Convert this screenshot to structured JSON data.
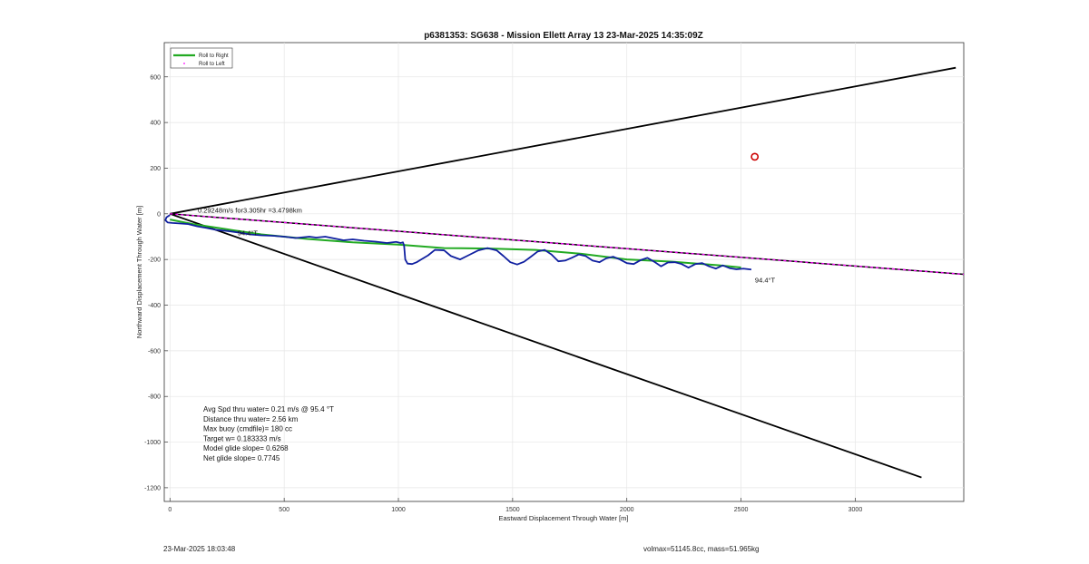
{
  "chart_data": {
    "type": "line",
    "title": "p6381353: SG638 - Mission Ellett Array 13 23-Mar-2025 14:35:09Z",
    "xlabel": "Eastward Displacement Through Water [m]",
    "ylabel": "Northward Displacement Through Water [m]",
    "xlim": [
      -25,
      3475
    ],
    "ylim": [
      -1260,
      750
    ],
    "xticks": [
      0,
      500,
      1000,
      1500,
      2000,
      2500,
      3000
    ],
    "yticks": [
      -1200,
      -1000,
      -800,
      -600,
      -400,
      -200,
      0,
      200,
      400,
      600
    ],
    "grid": true,
    "legend_position": "top-left",
    "legend": [
      {
        "label": "Roll to Right",
        "color": "#22aa22",
        "style": "solid"
      },
      {
        "label": "Roll to Left",
        "color": "#ff00ff",
        "style": "dot"
      }
    ],
    "series": [
      {
        "role": "cone-upper",
        "color": "#000000",
        "x": [
          0,
          3440
        ],
        "y": [
          0,
          640
        ]
      },
      {
        "role": "cone-lower",
        "color": "#000000",
        "x": [
          0,
          3290
        ],
        "y": [
          0,
          -1155
        ]
      },
      {
        "role": "heading-line",
        "color": "#000000",
        "color2": "#ff00ff",
        "x": [
          0,
          3475
        ],
        "y": [
          0,
          -265
        ]
      },
      {
        "name": "Roll to Right",
        "color": "#22aa22",
        "x": [
          0,
          100,
          250,
          400,
          600,
          800,
          1000,
          1200,
          1400,
          1600,
          1800,
          2000,
          2200,
          2400,
          2500
        ],
        "y": [
          -25,
          -45,
          -68,
          -90,
          -110,
          -125,
          -135,
          -150,
          -152,
          -158,
          -175,
          -200,
          -210,
          -225,
          -235
        ]
      },
      {
        "name": "track",
        "color": "#1020a0",
        "x": [
          0,
          -15,
          -20,
          -10,
          10,
          40,
          80,
          120,
          160,
          200,
          250,
          300,
          350,
          400,
          450,
          500,
          550,
          580,
          610,
          640,
          680,
          720,
          760,
          800,
          850,
          900,
          950,
          990,
          1010,
          1020,
          1025,
          1030,
          1040,
          1060,
          1080,
          1100,
          1130,
          1160,
          1200,
          1230,
          1270,
          1310,
          1350,
          1390,
          1430,
          1460,
          1490,
          1520,
          1550,
          1580,
          1610,
          1640,
          1670,
          1700,
          1730,
          1760,
          1790,
          1820,
          1850,
          1880,
          1910,
          1940,
          1970,
          2000,
          2030,
          2060,
          2090,
          2120,
          2150,
          2180,
          2210,
          2240,
          2270,
          2300,
          2330,
          2360,
          2390,
          2420,
          2450,
          2480,
          2510,
          2545
        ],
        "y": [
          -5,
          -15,
          -28,
          -38,
          -40,
          -42,
          -45,
          -55,
          -62,
          -70,
          -75,
          -82,
          -90,
          -94,
          -96,
          -100,
          -106,
          -103,
          -100,
          -104,
          -100,
          -108,
          -116,
          -112,
          -118,
          -122,
          -128,
          -123,
          -128,
          -125,
          -140,
          -200,
          -218,
          -220,
          -212,
          -200,
          -182,
          -158,
          -160,
          -185,
          -200,
          -180,
          -160,
          -150,
          -160,
          -185,
          -212,
          -222,
          -210,
          -188,
          -165,
          -158,
          -178,
          -208,
          -205,
          -192,
          -178,
          -185,
          -205,
          -212,
          -195,
          -188,
          -200,
          -216,
          -220,
          -203,
          -193,
          -210,
          -230,
          -213,
          -212,
          -220,
          -236,
          -220,
          -216,
          -230,
          -240,
          -226,
          -238,
          -243,
          -240,
          -244
        ]
      }
    ],
    "marker": {
      "x": 2560,
      "y": 250,
      "color": "#cc0000"
    },
    "annotations": [
      {
        "text": "0.29248m/s for3.305hr =3.4798km",
        "x": 350,
        "y": 5
      },
      {
        "text": "94.4°T",
        "x": 340,
        "y": -95
      },
      {
        "text": "94.4°T",
        "x": 2605,
        "y": -300
      }
    ],
    "stats_lines": [
      "Avg Spd thru water=  0.21 m/s @  95.4 °T",
      "Distance thru water=  2.56 km",
      "Max buoy (cmdfile)= 180 cc",
      "Target w= 0.183333 m/s",
      "Model glide slope= 0.6268",
      "Net glide slope= 0.7745"
    ]
  },
  "footer": {
    "timestamp": "23-Mar-2025 18:03:48",
    "vol_mass": "volmax=51145.8cc, mass=51.965kg"
  }
}
